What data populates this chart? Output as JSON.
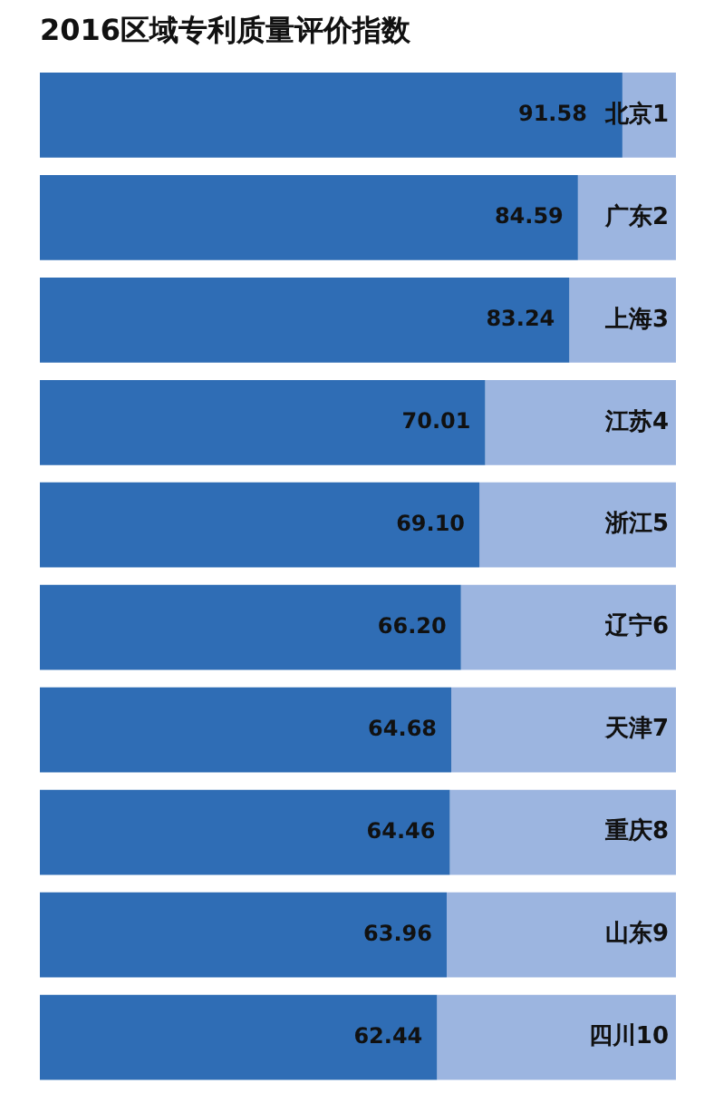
{
  "chart_data": {
    "type": "bar",
    "orientation": "horizontal",
    "title": "2016区域专利质量评价指数",
    "categories": [
      "北京1",
      "广东2",
      "上海3",
      "江苏4",
      "浙江5",
      "辽宁6",
      "天津7",
      "重庆8",
      "山东9",
      "四川10"
    ],
    "series": [
      {
        "color": "#2f6db5",
        "values": [
          91.58,
          84.59,
          83.24,
          70.01,
          69.1,
          66.2,
          64.68,
          64.46,
          63.96,
          62.44
        ],
        "value_labels": [
          "91.58",
          "84.59",
          "83.24",
          "70.01",
          "69.10",
          "66.20",
          "64.68",
          "64.46",
          "63.96",
          "62.44"
        ]
      },
      {
        "color": "#9cb5e0",
        "values": [
          8.42,
          15.41,
          16.76,
          29.99,
          30.9,
          33.8,
          35.32,
          35.54,
          36.04,
          37.56
        ]
      }
    ],
    "stacked": true,
    "xlim": [
      0,
      100
    ],
    "tick_labels": false,
    "legend": false
  }
}
